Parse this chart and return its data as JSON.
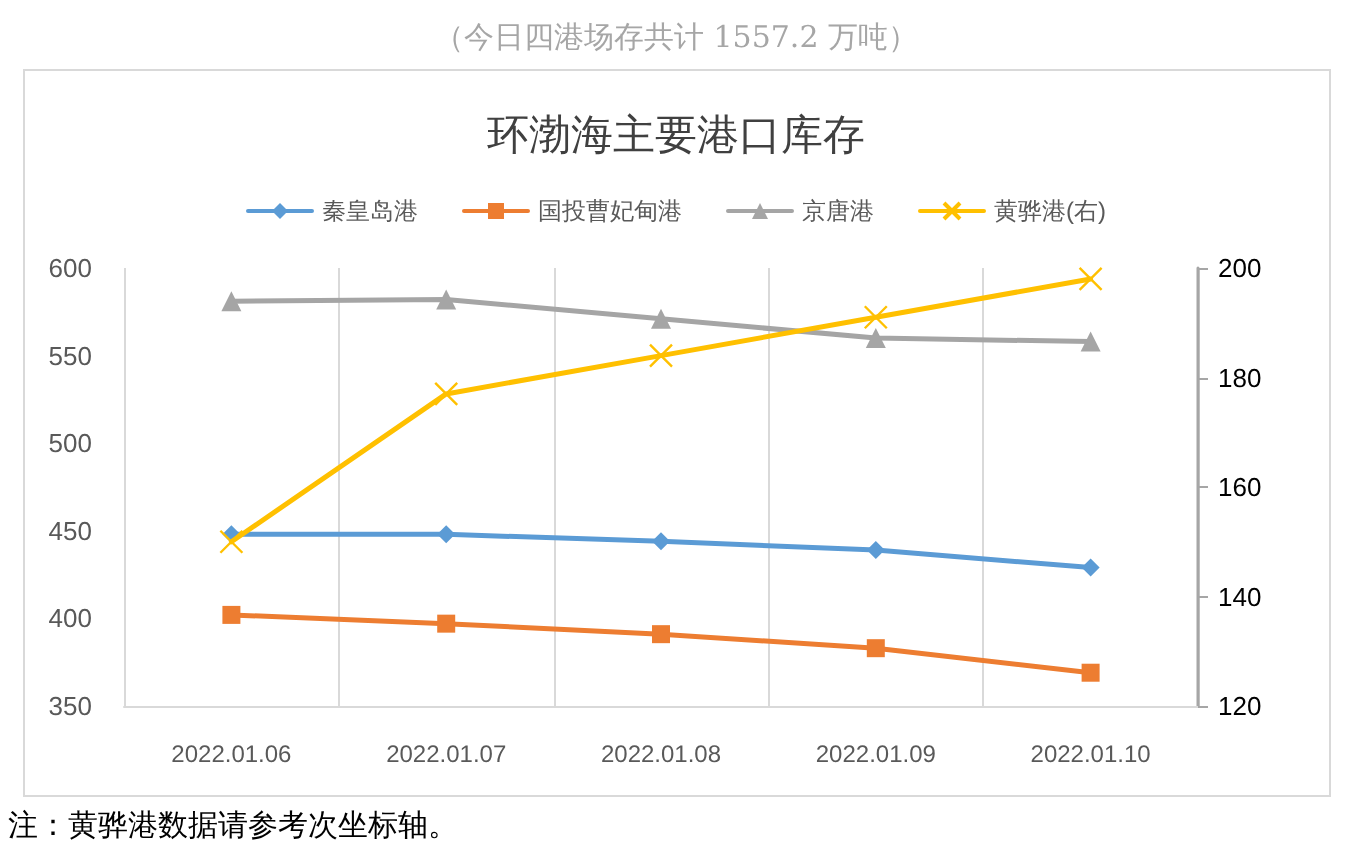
{
  "chart_data": {
    "type": "line",
    "title": "环渤海主要港口库存",
    "subtitle": "（今日四港场存共计 1557.2 万吨）",
    "annotations": [
      "注：黄骅港数据请参考次坐标轴。"
    ],
    "categories": [
      "2022.01.06",
      "2022.01.07",
      "2022.01.08",
      "2022.01.09",
      "2022.01.10"
    ],
    "series": [
      {
        "name": "秦皇岛港",
        "color": "#5b9bd5",
        "marker": "diamond",
        "values": [
          448,
          448,
          444,
          439,
          429
        ]
      },
      {
        "name": "国投曹妃甸港",
        "color": "#ed7d31",
        "marker": "square",
        "values": [
          402,
          397,
          391,
          383,
          369
        ]
      },
      {
        "name": "京唐港",
        "color": "#a5a5a5",
        "marker": "triangle",
        "values": [
          581,
          582,
          571,
          560,
          558
        ]
      },
      {
        "name": "黄骅港(右)",
        "color": "#ffc000",
        "marker": "cross",
        "axis": "y2",
        "values": [
          150,
          177,
          184,
          191,
          198
        ]
      }
    ],
    "ylim": [
      350,
      600
    ],
    "yticks": [
      350,
      400,
      450,
      500,
      550,
      600
    ],
    "y2lim": [
      120,
      200
    ],
    "y2ticks": [
      120,
      140,
      160,
      180,
      200
    ],
    "grid": "x",
    "legend": "top"
  }
}
